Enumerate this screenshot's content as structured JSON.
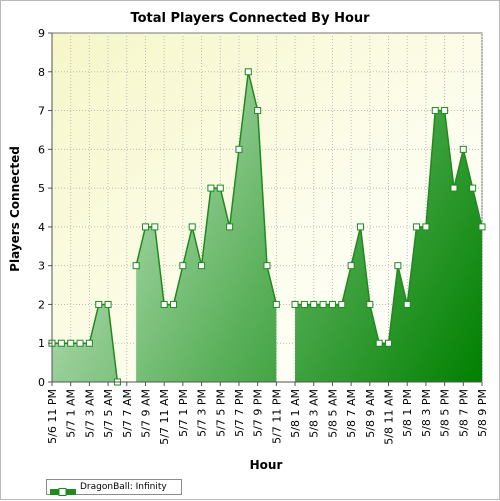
{
  "chart_data": {
    "type": "area",
    "title": "Total Players Connected By Hour",
    "xlabel": "Hour",
    "ylabel": "Players Connected",
    "ylim": [
      0,
      9
    ],
    "yticks": [
      0,
      1,
      2,
      3,
      4,
      5,
      6,
      7,
      8,
      9
    ],
    "grid": true,
    "legend_position": "bottom-left",
    "tick_labels": [
      "5/6 11 PM",
      "5/7 1 AM",
      "5/7 3 AM",
      "5/7 5 AM",
      "5/7 7 AM",
      "5/7 9 AM",
      "5/7 11 AM",
      "5/7 1 PM",
      "5/7 3 PM",
      "5/7 5 PM",
      "5/7 7 PM",
      "5/7 9 PM",
      "5/7 11 PM",
      "5/8 1 AM",
      "5/8 3 AM",
      "5/8 5 AM",
      "5/8 7 AM",
      "5/8 9 AM",
      "5/8 11 AM",
      "5/8 1 PM",
      "5/8 3 PM",
      "5/8 5 PM",
      "5/8 7 PM",
      "5/8 9 PM"
    ],
    "series": [
      {
        "name": "DragonBall: Infinity",
        "color": "#1f8a1f",
        "values": [
          1,
          1,
          1,
          1,
          1,
          2,
          2,
          0,
          null,
          3,
          4,
          4,
          2,
          2,
          3,
          4,
          3,
          5,
          5,
          4,
          6,
          8,
          7,
          3,
          2,
          null,
          2,
          2,
          2,
          2,
          2,
          2,
          3,
          4,
          2,
          1,
          1,
          3,
          2,
          4,
          4,
          7,
          7,
          5,
          6,
          5,
          4
        ]
      }
    ]
  }
}
